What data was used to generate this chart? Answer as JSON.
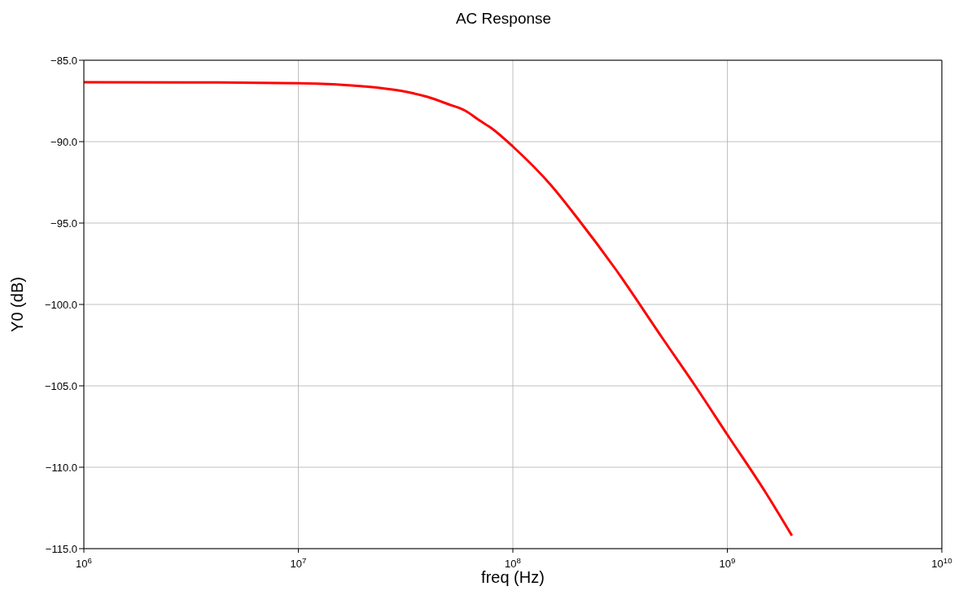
{
  "chart_data": {
    "type": "line",
    "title": "AC Response",
    "xlabel": "freq (Hz)",
    "ylabel": "Y0 (dB)",
    "log": "x",
    "grid": true,
    "marker": "none",
    "line_style": "solid",
    "xlim": [
      1000000,
      10000000000
    ],
    "xticks": [
      {
        "value": 1000000,
        "label": "10$^{6}$"
      },
      {
        "value": 10000000,
        "label": "10$^{7}$"
      },
      {
        "value": 100000000,
        "label": "10$^{8}$"
      },
      {
        "value": 1000000000,
        "label": "10$^{9}$"
      },
      {
        "value": 10000000000,
        "label": "10$^{10}$"
      }
    ],
    "ylim": [
      -115,
      -85
    ],
    "yticks": [
      {
        "value": -115,
        "label": "−115.0"
      },
      {
        "value": -110,
        "label": "−110.0"
      },
      {
        "value": -105,
        "label": "−105.0"
      },
      {
        "value": -100,
        "label": "−100.0"
      },
      {
        "value": -95,
        "label": "−95.0"
      },
      {
        "value": -90,
        "label": "−90.0"
      },
      {
        "value": -85,
        "label": "−85.0"
      }
    ],
    "series": [
      {
        "color": "#ff0000",
        "x": [
          1000000,
          3000000,
          10000000,
          20000000,
          30000000,
          40000000,
          50000000,
          60000000,
          70000000,
          80000000,
          100000000,
          150000000,
          200000000,
          300000000,
          500000000,
          700000000,
          1000000000,
          1500000000,
          2000000000
        ],
        "values": [
          -86.35,
          -86.36,
          -86.41,
          -86.6,
          -86.88,
          -87.25,
          -87.7,
          -88.1,
          -88.7,
          -89.2,
          -90.3,
          -92.65,
          -94.7,
          -97.8,
          -102.1,
          -104.9,
          -108.0,
          -111.5,
          -114.2
        ]
      }
    ]
  }
}
